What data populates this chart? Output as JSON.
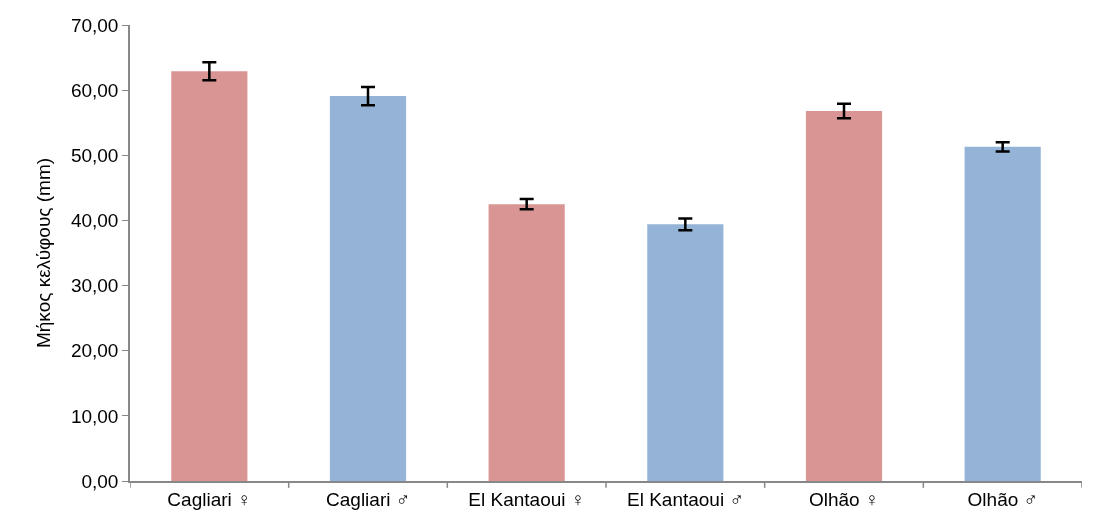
{
  "chart_data": {
    "type": "bar",
    "ylabel": "Μήκος κελύφους (mm)",
    "categories": [
      "Cagliari ♀",
      "Cagliari ♂",
      "El Kantaoui ♀",
      "El Kantaoui ♂",
      "Olhão ♀",
      "Olhão ♂"
    ],
    "values": [
      62.9,
      59.1,
      42.5,
      39.4,
      56.8,
      51.3
    ],
    "errors": [
      1.4,
      1.4,
      0.8,
      0.9,
      1.1,
      0.7
    ],
    "colors": [
      "#d99594",
      "#95b3d7",
      "#d99594",
      "#95b3d7",
      "#d99594",
      "#95b3d7"
    ],
    "ylim": [
      0,
      70
    ],
    "yticks": [
      {
        "value": 0,
        "label": "0,00"
      },
      {
        "value": 10,
        "label": "10,00"
      },
      {
        "value": 20,
        "label": "20,00"
      },
      {
        "value": 30,
        "label": "30,00"
      },
      {
        "value": 40,
        "label": "40,00"
      },
      {
        "value": 50,
        "label": "50,00"
      },
      {
        "value": 60,
        "label": "60,00"
      },
      {
        "value": 70,
        "label": "70,00"
      }
    ]
  }
}
